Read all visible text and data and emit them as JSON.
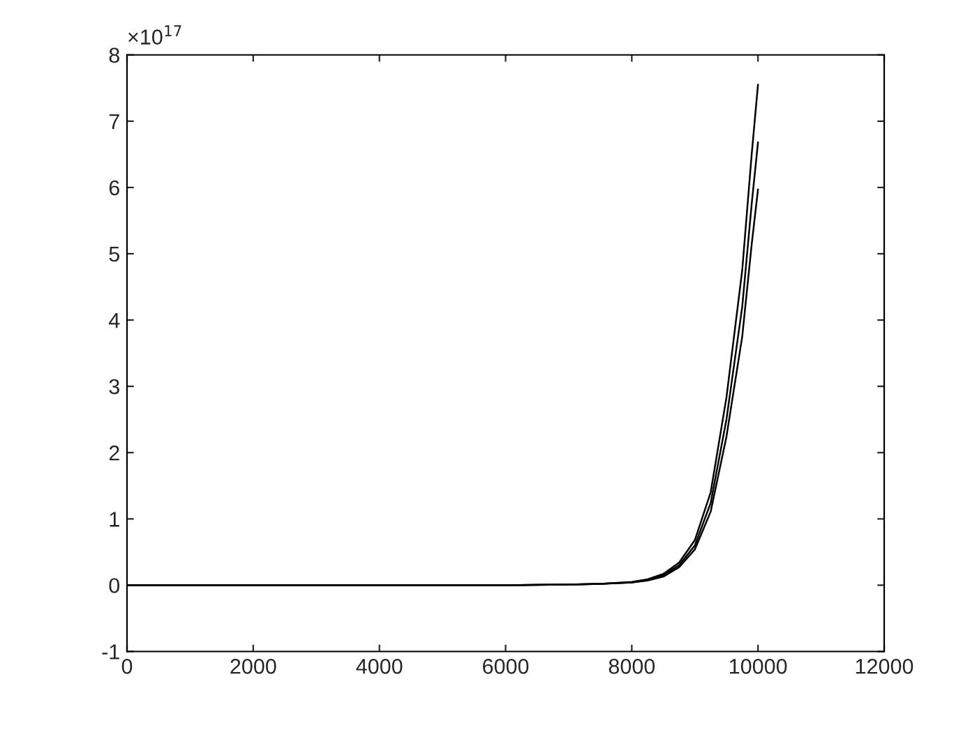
{
  "chart_data": {
    "type": "line",
    "annotations": [
      "×10$^{17}$"
    ],
    "x": [
      0,
      2000,
      4000,
      6000,
      7000,
      7500,
      8000,
      8250,
      8500,
      8750,
      9000,
      9250,
      9500,
      9750,
      9900,
      10000
    ],
    "series": [
      {
        "color": "#000000",
        "values": [
          0,
          0,
          0,
          0,
          0.01,
          0.02,
          0.05,
          0.09,
          0.17,
          0.34,
          0.68,
          1.4,
          2.83,
          4.75,
          6.5,
          7.55
        ]
      },
      {
        "color": "#000000",
        "values": [
          0,
          0,
          0,
          0,
          0.01,
          0.02,
          0.04,
          0.08,
          0.15,
          0.3,
          0.6,
          1.24,
          2.5,
          4.2,
          5.75,
          6.68
        ]
      },
      {
        "color": "#000000",
        "values": [
          0,
          0,
          0,
          0,
          0.01,
          0.02,
          0.04,
          0.07,
          0.13,
          0.27,
          0.54,
          1.11,
          2.24,
          3.75,
          5.14,
          5.97
        ]
      }
    ],
    "xlim": [
      0,
      12000
    ],
    "xticks": [
      0,
      2000,
      4000,
      6000,
      8000,
      10000,
      12000
    ],
    "ylim": [
      -1,
      8
    ],
    "yticks": [
      -1,
      0,
      1,
      2,
      3,
      4,
      5,
      6,
      7,
      8
    ],
    "grid": false,
    "legend": false,
    "marker": "none",
    "line_style": "solid"
  }
}
